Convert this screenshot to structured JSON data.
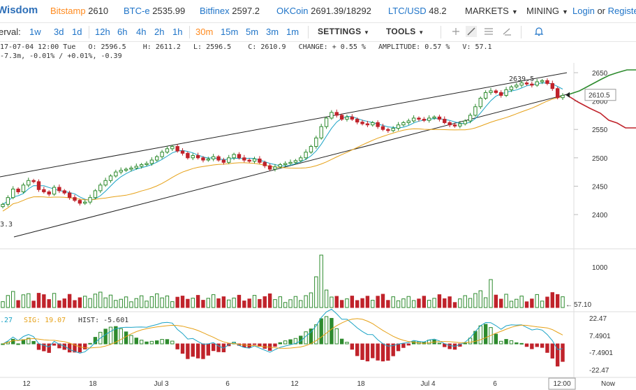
{
  "header": {
    "logo": "Wisdom",
    "tickers": [
      {
        "exchange": "Bitstamp",
        "price": "2610"
      },
      {
        "exchange": "BTC-e",
        "price": "2535.99"
      },
      {
        "exchange": "Bitfinex",
        "price": "2597.2"
      },
      {
        "exchange": "OKCoin",
        "price": "2691.39/18292"
      },
      {
        "exchange": "LTC/USD",
        "price": "48.2"
      }
    ],
    "menus": [
      "MARKETS",
      "MINING"
    ],
    "login": "Login",
    "or": "or",
    "register": "Register"
  },
  "toolbar": {
    "interval_label": "erval:",
    "intervals_long": [
      "1w",
      "3d",
      "1d"
    ],
    "intervals_hours": [
      "12h",
      "6h",
      "4h",
      "2h",
      "1h"
    ],
    "intervals_min": [
      "30m",
      "15m",
      "5m",
      "3m",
      "1m"
    ],
    "active_interval": "30m",
    "settings": "SETTINGS",
    "tools": "TOOLS"
  },
  "ohlc": {
    "date": "17-07-04 12:00 Tue",
    "open_label": "O:",
    "open": "2596.5",
    "high_label": "H:",
    "high": "2611.2",
    "low_label": "L:",
    "low": "2596.5",
    "close_label": "C:",
    "close": "2610.9",
    "change_label": "CHANGE:",
    "change": "+ 0.55 %",
    "amplitude_label": "AMPLITUDE:",
    "amplitude": "0.57 %",
    "volume_label": "V:",
    "volume": "57.1",
    "line2": "-7.3m, -0.01% / +0.01%, -0.39"
  },
  "chart_data": {
    "type": "candlestick",
    "price_axis_ticks": [
      "2650",
      "2600",
      "2550",
      "2500",
      "2450",
      "2400"
    ],
    "ylim": [
      2385,
      2665
    ],
    "current_price_label": "2610.5",
    "high_marker": "2639.5",
    "low_marker_partial": "3.3",
    "volume_axis_ticks": [
      "1000"
    ],
    "volume_current_label": "57.10",
    "macd": {
      "macd_label_partial": ".27",
      "sig_label": "SIG: 19.07",
      "hist_label": "HIST: -5.601",
      "axis_ticks": [
        "22.47",
        "7.4901",
        "-7.4901",
        "-22.47"
      ]
    },
    "time_axis_ticks": [
      "12",
      "18",
      "Jul 3",
      "6",
      "12",
      "18",
      "Jul 4",
      "6",
      "12:00",
      "Now"
    ],
    "close_series": [
      2418,
      2430,
      2445,
      2440,
      2452,
      2460,
      2458,
      2444,
      2440,
      2436,
      2448,
      2442,
      2438,
      2430,
      2425,
      2420,
      2422,
      2430,
      2442,
      2452,
      2460,
      2468,
      2475,
      2478,
      2480,
      2482,
      2485,
      2488,
      2490,
      2496,
      2502,
      2510,
      2516,
      2520,
      2512,
      2508,
      2500,
      2504,
      2500,
      2496,
      2498,
      2502,
      2496,
      2492,
      2500,
      2506,
      2500,
      2496,
      2494,
      2498,
      2492,
      2486,
      2480,
      2484,
      2488,
      2490,
      2492,
      2495,
      2500,
      2510,
      2520,
      2535,
      2555,
      2570,
      2580,
      2575,
      2568,
      2572,
      2568,
      2563,
      2560,
      2558,
      2562,
      2555,
      2550,
      2548,
      2552,
      2558,
      2562,
      2565,
      2570,
      2568,
      2566,
      2570,
      2572,
      2568,
      2562,
      2558,
      2556,
      2560,
      2565,
      2575,
      2590,
      2605,
      2615,
      2618,
      2615,
      2610,
      2620,
      2625,
      2628,
      2632,
      2630,
      2628,
      2634,
      2636,
      2631,
      2622,
      2606,
      2610
    ]
  }
}
